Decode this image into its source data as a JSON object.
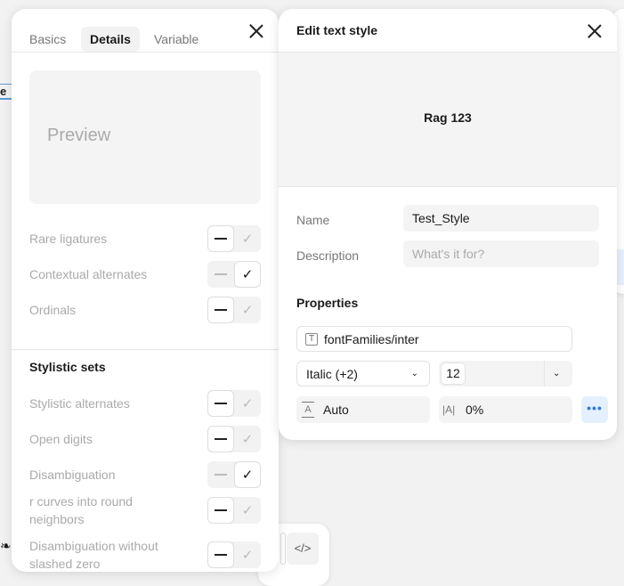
{
  "background": {
    "partial_text": "e r",
    "code_icon": "code-icon",
    "leaf_icon": "leaf-icon"
  },
  "details_panel": {
    "tabs": [
      {
        "label": "Basics",
        "active": false
      },
      {
        "label": "Details",
        "active": true
      },
      {
        "label": "Variable",
        "active": false
      }
    ],
    "preview_text": "Preview",
    "features": [
      {
        "label": "Rare ligatures",
        "state": "off"
      },
      {
        "label": "Contextual alternates",
        "state": "on"
      },
      {
        "label": "Ordinals",
        "state": "off"
      }
    ],
    "stylistic_sets_title": "Stylistic sets",
    "stylistic_sets": [
      {
        "label": "Stylistic alternates",
        "state": "off"
      },
      {
        "label": "Open digits",
        "state": "off"
      },
      {
        "label": "Disambiguation",
        "state": "on"
      },
      {
        "label": "r curves into round neighbors",
        "state": "off"
      },
      {
        "label": "Disambiguation without slashed zero",
        "state": "off"
      }
    ]
  },
  "edit_panel": {
    "title": "Edit text style",
    "preview_text": "Rag 123",
    "name_label": "Name",
    "name_value": "Test_Style",
    "description_label": "Description",
    "description_placeholder": "What's it for?",
    "properties_title": "Properties",
    "font_family": "fontFamilies/inter",
    "font_weight": "Italic (+2)",
    "font_size": "12",
    "line_height": "Auto",
    "letter_spacing": "0%",
    "accent_color": "#e5f0ff"
  }
}
